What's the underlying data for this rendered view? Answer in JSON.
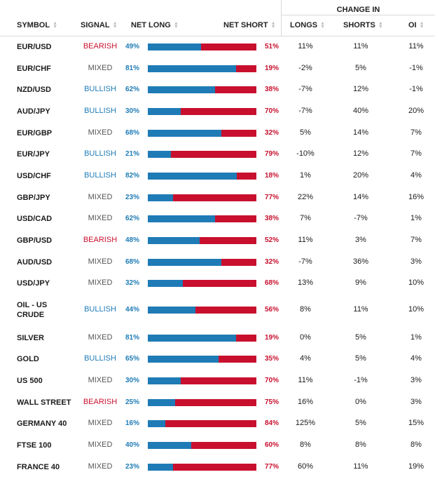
{
  "headers": {
    "change_in": "CHANGE IN",
    "symbol": "SYMBOL",
    "signal": "SIGNAL",
    "net_long": "NET LONG",
    "net_short": "NET SHORT",
    "longs": "LONGS",
    "shorts": "SHORTS",
    "oi": "OI"
  },
  "colors": {
    "long": "#1f7bb6",
    "short": "#c8102e",
    "bearish": "#c8102e",
    "bullish": "#1f7bb6",
    "mixed": "#555555"
  },
  "rows": [
    {
      "symbol": "EUR/USD",
      "signal": "BEARISH",
      "net_long": "49%",
      "net_short": "51%",
      "long_pct": 49,
      "longs": "11%",
      "shorts": "11%",
      "oi": "11%"
    },
    {
      "symbol": "EUR/CHF",
      "signal": "MIXED",
      "net_long": "81%",
      "net_short": "19%",
      "long_pct": 81,
      "longs": "-2%",
      "shorts": "5%",
      "oi": "-1%"
    },
    {
      "symbol": "NZD/USD",
      "signal": "BULLISH",
      "net_long": "62%",
      "net_short": "38%",
      "long_pct": 62,
      "longs": "-7%",
      "shorts": "12%",
      "oi": "-1%"
    },
    {
      "symbol": "AUD/JPY",
      "signal": "BULLISH",
      "net_long": "30%",
      "net_short": "70%",
      "long_pct": 30,
      "longs": "-7%",
      "shorts": "40%",
      "oi": "20%"
    },
    {
      "symbol": "EUR/GBP",
      "signal": "MIXED",
      "net_long": "68%",
      "net_short": "32%",
      "long_pct": 68,
      "longs": "5%",
      "shorts": "14%",
      "oi": "7%"
    },
    {
      "symbol": "EUR/JPY",
      "signal": "BULLISH",
      "net_long": "21%",
      "net_short": "79%",
      "long_pct": 21,
      "longs": "-10%",
      "shorts": "12%",
      "oi": "7%"
    },
    {
      "symbol": "USD/CHF",
      "signal": "BULLISH",
      "net_long": "82%",
      "net_short": "18%",
      "long_pct": 82,
      "longs": "1%",
      "shorts": "20%",
      "oi": "4%"
    },
    {
      "symbol": "GBP/JPY",
      "signal": "MIXED",
      "net_long": "23%",
      "net_short": "77%",
      "long_pct": 23,
      "longs": "22%",
      "shorts": "14%",
      "oi": "16%"
    },
    {
      "symbol": "USD/CAD",
      "signal": "MIXED",
      "net_long": "62%",
      "net_short": "38%",
      "long_pct": 62,
      "longs": "7%",
      "shorts": "-7%",
      "oi": "1%"
    },
    {
      "symbol": "GBP/USD",
      "signal": "BEARISH",
      "net_long": "48%",
      "net_short": "52%",
      "long_pct": 48,
      "longs": "11%",
      "shorts": "3%",
      "oi": "7%"
    },
    {
      "symbol": "AUD/USD",
      "signal": "MIXED",
      "net_long": "68%",
      "net_short": "32%",
      "long_pct": 68,
      "longs": "-7%",
      "shorts": "36%",
      "oi": "3%"
    },
    {
      "symbol": "USD/JPY",
      "signal": "MIXED",
      "net_long": "32%",
      "net_short": "68%",
      "long_pct": 32,
      "longs": "13%",
      "shorts": "9%",
      "oi": "10%"
    },
    {
      "symbol": "OIL - US CRUDE",
      "symbol_line1": "OIL - US",
      "symbol_line2": "CRUDE",
      "signal": "BULLISH",
      "net_long": "44%",
      "net_short": "56%",
      "long_pct": 44,
      "longs": "8%",
      "shorts": "11%",
      "oi": "10%"
    },
    {
      "symbol": "SILVER",
      "signal": "MIXED",
      "net_long": "81%",
      "net_short": "19%",
      "long_pct": 81,
      "longs": "0%",
      "shorts": "5%",
      "oi": "1%"
    },
    {
      "symbol": "GOLD",
      "signal": "BULLISH",
      "net_long": "65%",
      "net_short": "35%",
      "long_pct": 65,
      "longs": "4%",
      "shorts": "5%",
      "oi": "4%"
    },
    {
      "symbol": "US 500",
      "signal": "MIXED",
      "net_long": "30%",
      "net_short": "70%",
      "long_pct": 30,
      "longs": "11%",
      "shorts": "-1%",
      "oi": "3%"
    },
    {
      "symbol": "WALL STREET",
      "signal": "BEARISH",
      "net_long": "25%",
      "net_short": "75%",
      "long_pct": 25,
      "longs": "16%",
      "shorts": "0%",
      "oi": "3%"
    },
    {
      "symbol": "GERMANY 40",
      "signal": "MIXED",
      "net_long": "16%",
      "net_short": "84%",
      "long_pct": 16,
      "longs": "125%",
      "shorts": "5%",
      "oi": "15%"
    },
    {
      "symbol": "FTSE 100",
      "signal": "MIXED",
      "net_long": "40%",
      "net_short": "60%",
      "long_pct": 40,
      "longs": "8%",
      "shorts": "8%",
      "oi": "8%"
    },
    {
      "symbol": "FRANCE 40",
      "signal": "MIXED",
      "net_long": "23%",
      "net_short": "77%",
      "long_pct": 23,
      "longs": "60%",
      "shorts": "11%",
      "oi": "19%"
    }
  ]
}
